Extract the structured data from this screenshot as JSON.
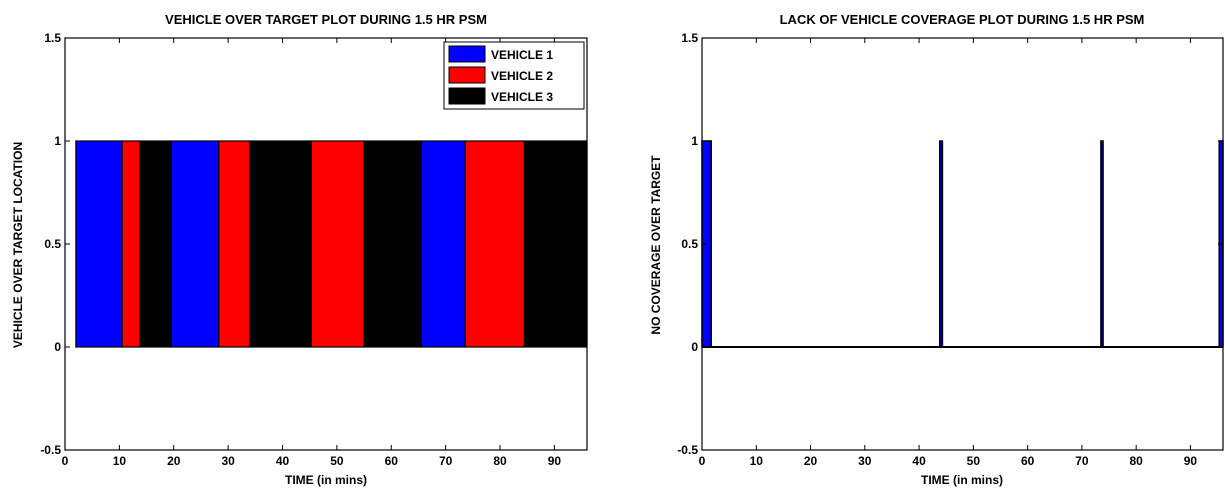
{
  "chart_data": [
    {
      "type": "bar",
      "title": "VEHICLE OVER TARGET PLOT DURING 1.5 HR PSM",
      "xlabel": "TIME (in mins)",
      "ylabel": "VEHICLE OVER TARGET LOCATION",
      "xlim": [
        0,
        96
      ],
      "ylim": [
        -0.5,
        1.5
      ],
      "xticks": [
        0,
        10,
        20,
        30,
        40,
        50,
        60,
        70,
        80,
        90
      ],
      "yticks": [
        -0.5,
        0,
        0.5,
        1,
        1.5
      ],
      "xtick_labels": [
        "0",
        "10",
        "20",
        "30",
        "40",
        "50",
        "60",
        "70",
        "80",
        "90"
      ],
      "ytick_labels": [
        "-0.5",
        "0",
        "0.5",
        "1",
        "1.5"
      ],
      "legend_position": "top-right",
      "series": [
        {
          "name": "VEHICLE 1",
          "color": "#0000ff",
          "intervals": [
            [
              2,
              10.5
            ],
            [
              19.5,
              28.3
            ],
            [
              65.5,
              73.6
            ]
          ],
          "value": 1
        },
        {
          "name": "VEHICLE 2",
          "color": "#ff0000",
          "intervals": [
            [
              10.5,
              13.8
            ],
            [
              28.3,
              34
            ],
            [
              45.3,
              55
            ],
            [
              73.6,
              84.5
            ]
          ],
          "value": 1
        },
        {
          "name": "VEHICLE 3",
          "color": "#000000",
          "intervals": [
            [
              13.8,
              19.5
            ],
            [
              34,
              45.3
            ],
            [
              55,
              65.5
            ],
            [
              84.5,
              96
            ]
          ],
          "value": 1
        }
      ]
    },
    {
      "type": "bar",
      "title": "LACK OF VEHICLE COVERAGE PLOT DURING 1.5 HR PSM",
      "xlabel": "TIME (in mins)",
      "ylabel": "NO COVERAGE OVER TARGET",
      "xlim": [
        0,
        96
      ],
      "ylim": [
        -0.5,
        1.5
      ],
      "xticks": [
        0,
        10,
        20,
        30,
        40,
        50,
        60,
        70,
        80,
        90
      ],
      "yticks": [
        -0.5,
        0,
        0.5,
        1,
        1.5
      ],
      "xtick_labels": [
        "0",
        "10",
        "20",
        "30",
        "40",
        "50",
        "60",
        "70",
        "80",
        "90"
      ],
      "ytick_labels": [
        "-0.5",
        "0",
        "0.5",
        "1",
        "1.5"
      ],
      "fill_color": "#0000ff",
      "intervals": [
        [
          0,
          1.7
        ],
        [
          43.8,
          44.3
        ],
        [
          73.5,
          73.9
        ],
        [
          95.3,
          96
        ]
      ],
      "value": 1
    }
  ]
}
